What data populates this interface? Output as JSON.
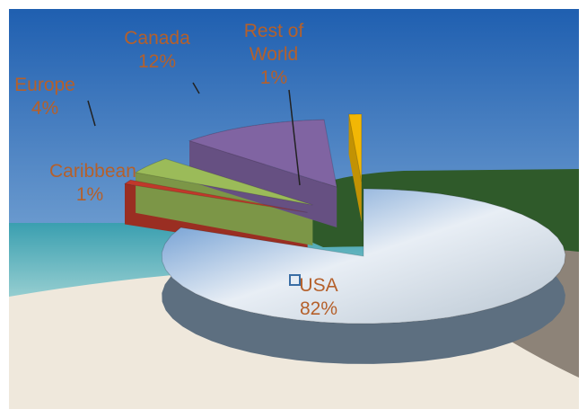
{
  "chart_data": {
    "type": "pie",
    "categories": [
      "USA",
      "Caribbean",
      "Europe",
      "Canada",
      "Rest of World"
    ],
    "values": [
      82,
      1,
      4,
      12,
      1
    ],
    "value_labels": [
      "82%",
      "1%",
      "4%",
      "12%",
      "1%"
    ],
    "colors": [
      "#9fb6d6",
      "#c0392b",
      "#9bbb59",
      "#8064a2",
      "#f2b705"
    ]
  }
}
